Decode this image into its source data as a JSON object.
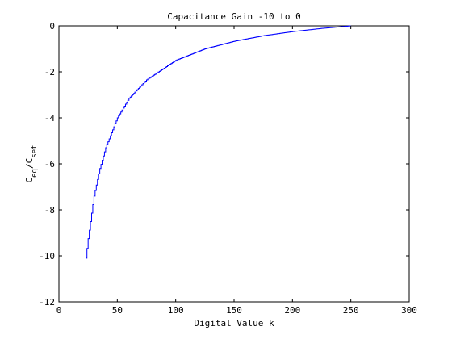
{
  "chart_data": {
    "type": "line",
    "title": "Capacitance Gain -10 to 0",
    "xlabel": "Digital Value k",
    "ylabel": {
      "base1": "C",
      "sub1": "eq",
      "slash": "/",
      "base2": "C",
      "sub2": "set"
    },
    "xlim": [
      0,
      300
    ],
    "ylim": [
      -12,
      0
    ],
    "x_ticks": [
      0,
      50,
      100,
      150,
      200,
      250,
      300
    ],
    "y_ticks": [
      0,
      -2,
      -4,
      -6,
      -8,
      -10,
      -12
    ],
    "grid": false,
    "step": true,
    "k_range": [
      23,
      250
    ],
    "line_color": "#0000ff",
    "series": [
      {
        "name": "",
        "x": [
          23,
          25,
          30,
          35,
          40,
          50,
          60,
          75,
          100,
          125,
          150,
          175,
          200,
          225,
          250
        ],
        "y": [
          -10.1,
          -9.25,
          -7.4,
          -6.2,
          -5.3,
          -4.0,
          -3.15,
          -2.35,
          -1.5,
          -1.0,
          -0.67,
          -0.43,
          -0.25,
          -0.11,
          0.0
        ]
      }
    ]
  }
}
